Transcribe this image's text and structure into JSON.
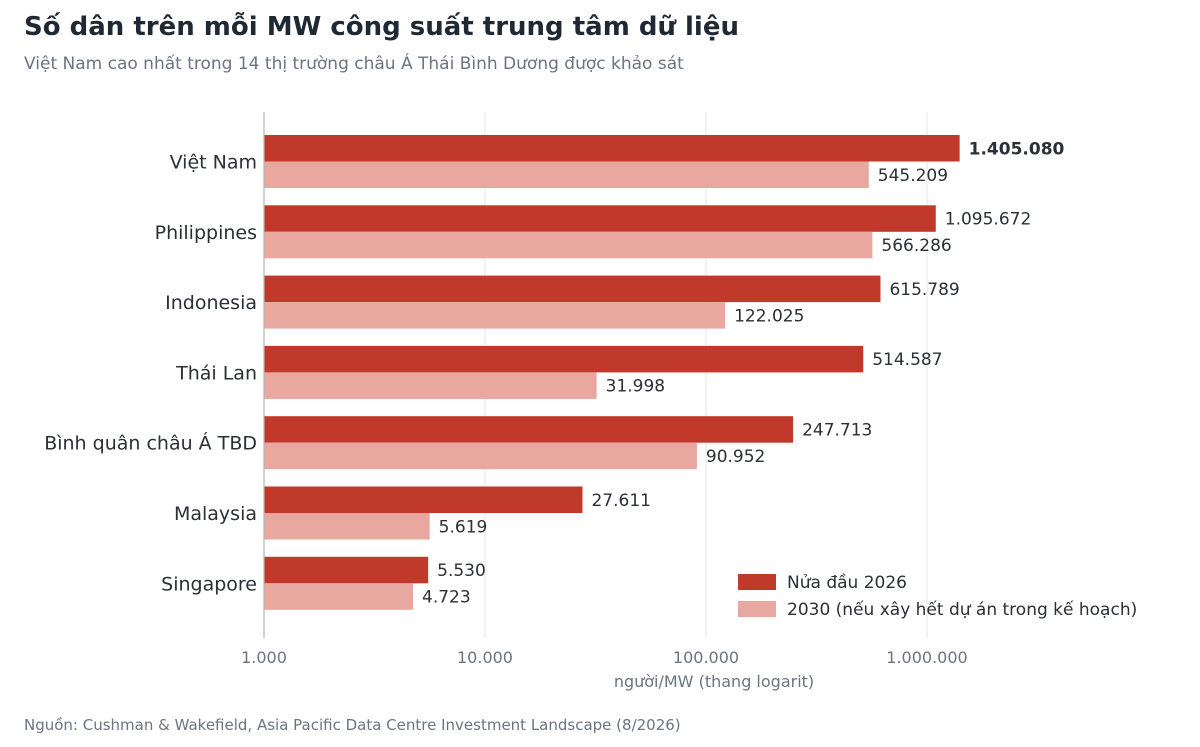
{
  "chart_data": {
    "type": "bar",
    "orientation": "horizontal",
    "title": "Số dân trên mỗi MW công suất trung tâm dữ liệu",
    "subtitle": "Việt Nam cao nhất trong 14 thị trường châu Á Thái Bình Dương được khảo sát",
    "xlabel": "người/MW (thang logarit)",
    "xscale": "log",
    "xlim": [
      1000,
      2000000
    ],
    "xticks": [
      1000,
      10000,
      100000,
      1000000
    ],
    "xtick_labels": [
      "1.000",
      "10.000",
      "100.000",
      "1.000.000"
    ],
    "grid": "vertical",
    "legend_position": "bottom-right",
    "categories": [
      "Việt Nam",
      "Philippines",
      "Indonesia",
      "Thái Lan",
      "Bình quân châu Á TBD",
      "Malaysia",
      "Singapore"
    ],
    "series": [
      {
        "name": "Nửa đầu 2026",
        "color": "#c0392b",
        "values": [
          1405080,
          1095672,
          615789,
          514587,
          247713,
          27611,
          5530
        ],
        "labels": [
          "1.405.080",
          "1.095.672",
          "615.789",
          "514.587",
          "247.713",
          "27.611",
          "5.530"
        ]
      },
      {
        "name": "2030 (nếu xây hết dự án trong kế hoạch)",
        "color": "#e8a79f",
        "values": [
          545209,
          566286,
          122025,
          31998,
          90952,
          5619,
          4723
        ],
        "labels": [
          "545.209",
          "566.286",
          "122.025",
          "31.998",
          "90.952",
          "5.619",
          "4.723"
        ]
      }
    ],
    "source": "Nguồn: Cushman & Wakefield, Asia Pacific Data Centre Investment Landscape (8/2026)"
  }
}
